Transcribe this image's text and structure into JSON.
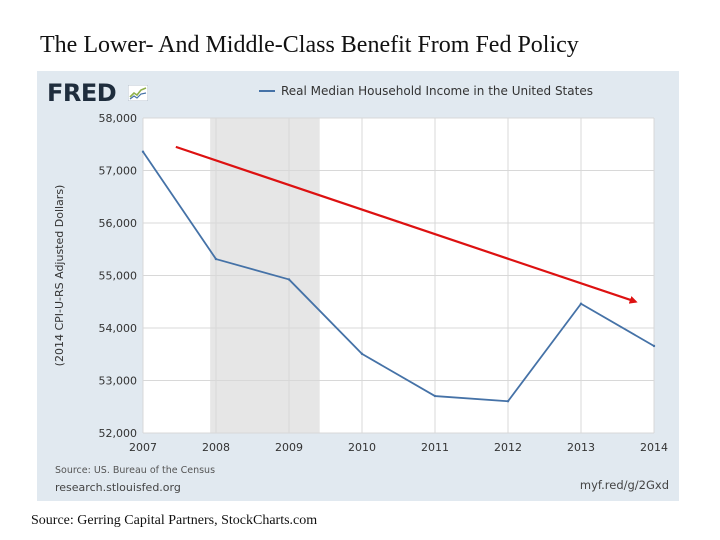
{
  "slide": {
    "title": "The Lower- And Middle-Class Benefit From Fed Policy",
    "source": "Source: Gerring Capital Partners, StockCharts.com"
  },
  "panel": {
    "logo_text": "FRED",
    "source_note": "Source: US. Bureau of the Census",
    "research_url": "research.stlouisfed.org",
    "short_url": "myf.red/g/2Gxd"
  },
  "colors": {
    "series": "#4572a7",
    "trend_arrow": "#dd1111",
    "recession_band": "#e6e6e6",
    "panel_bg": "#e1e9f0"
  },
  "chart_data": {
    "type": "line",
    "title": "",
    "legend": "Real Median Household Income in the United States",
    "legend_position": "top",
    "xlabel": "",
    "ylabel": "(2014 CPI-U-RS Adjusted Dollars)",
    "x_ticks": [
      "2007",
      "2008",
      "2009",
      "2010",
      "2011",
      "2012",
      "2013",
      "2014"
    ],
    "y_ticks": [
      "52,000",
      "53,000",
      "54,000",
      "55,000",
      "56,000",
      "57,000",
      "58,000"
    ],
    "xlim": [
      2007,
      2014
    ],
    "ylim": [
      52000,
      58000
    ],
    "grid": true,
    "series": [
      {
        "name": "Real Median Household Income in the United States",
        "x": [
          2007,
          2008,
          2009,
          2010,
          2011,
          2012,
          2013,
          2014
        ],
        "values": [
          57357,
          55313,
          54925,
          53507,
          52704,
          52605,
          54462,
          53657
        ]
      }
    ],
    "recession_band": {
      "start": 2007.92,
      "end": 2009.42
    },
    "trend_arrow": {
      "start": [
        2007.45,
        57450
      ],
      "end": [
        2013.75,
        54500
      ]
    }
  }
}
